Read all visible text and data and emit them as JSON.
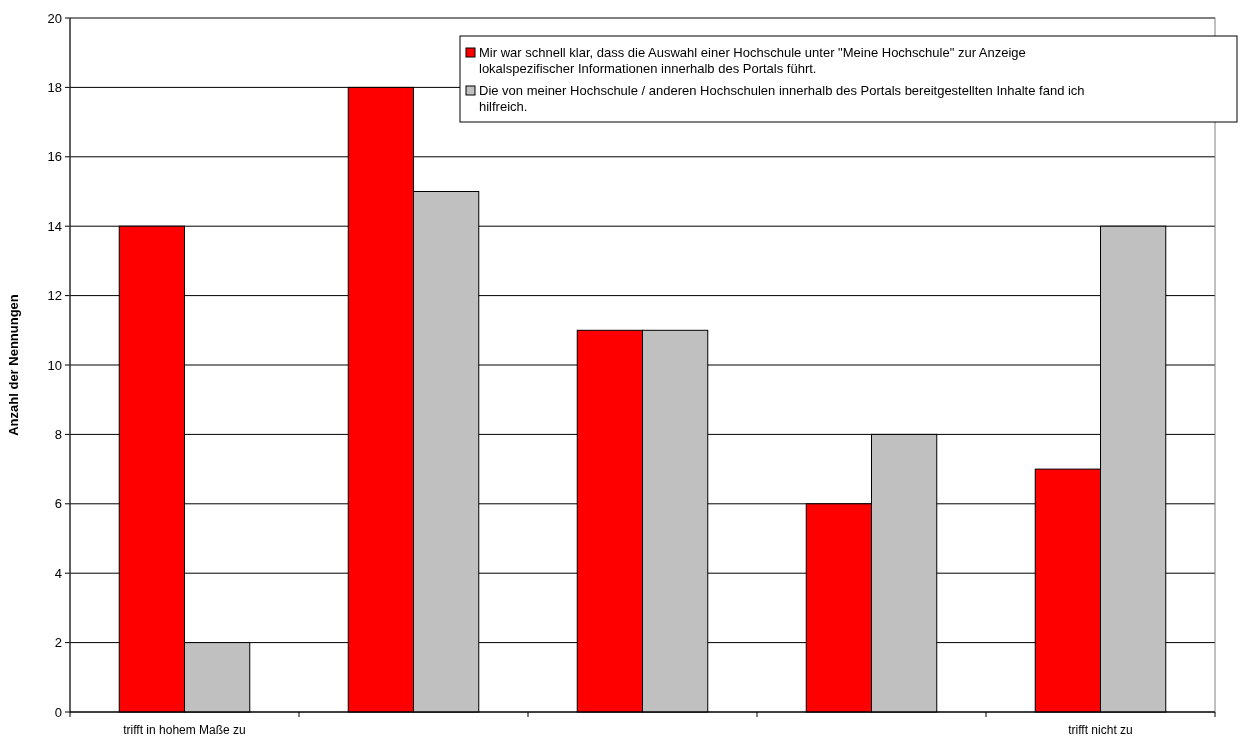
{
  "chart_data": {
    "type": "bar",
    "ylabel": "Anzahl der Nennungen",
    "categories": [
      "trifft in hohem Maße zu",
      null,
      null,
      null,
      "trifft nicht zu"
    ],
    "series": [
      {
        "name": "Mir war schnell klar, dass die Auswahl einer Hochschule unter \"Meine Hochschule\" zur Anzeige lokalspezifischer Informationen innerhalb des Portals führt.",
        "color": "#ff0000",
        "values": [
          14,
          18,
          11,
          6,
          7
        ]
      },
      {
        "name": "Die von meiner Hochschule / anderen Hochschulen innerhalb des Portals bereitgestellten Inhalte fand ich hilfreich.",
        "color": "#c0c0c0",
        "values": [
          2,
          15,
          11,
          8,
          14
        ]
      }
    ],
    "ylim": [
      0,
      20
    ],
    "yticks": [
      0,
      2,
      4,
      6,
      8,
      10,
      12,
      14,
      16,
      18,
      20
    ],
    "grid": "y",
    "legend": "top right"
  }
}
